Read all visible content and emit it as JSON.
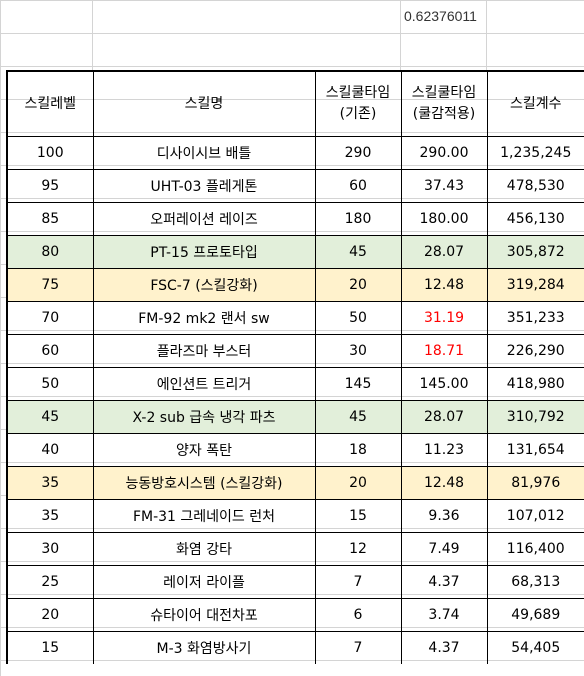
{
  "top_cell": {
    "value": "0.62376011"
  },
  "headers": {
    "level": "스킬레벨",
    "name": "스킬명",
    "cooldown_base_1": "스킬쿨타임",
    "cooldown_base_2": "(기존)",
    "cooldown_reduced_1": "스킬쿨타임",
    "cooldown_reduced_2": "(쿨감적용)",
    "coefficient": "스킬계수"
  },
  "rows": [
    {
      "level": "100",
      "name": "디사이시브  배틀",
      "base": "290",
      "reduced": "290.00",
      "coef": "1,235,245",
      "style": "",
      "bold": false,
      "red": false
    },
    {
      "level": "95",
      "name": "UHT-03 플레게톤",
      "base": "60",
      "reduced": "37.43",
      "coef": "478,530",
      "style": "",
      "bold": false,
      "red": false
    },
    {
      "level": "85",
      "name": "오퍼레이션 레이즈",
      "base": "180",
      "reduced": "180.00",
      "coef": "456,130",
      "style": "",
      "bold": false,
      "red": false
    },
    {
      "level": "80",
      "name": "PT-15 프로토타입",
      "base": "45",
      "reduced": "28.07",
      "coef": "305,872",
      "style": "green",
      "bold": false,
      "red": false
    },
    {
      "level": "75",
      "name": "FSC-7 (스킬강화)",
      "base": "20",
      "reduced": "12.48",
      "coef": "319,284",
      "style": "yellow",
      "bold": false,
      "red": false
    },
    {
      "level": "70",
      "name": "FM-92 mk2 랜서 sw",
      "base": "50",
      "reduced": "31.19",
      "coef": "351,233",
      "style": "",
      "bold": true,
      "red": true
    },
    {
      "level": "60",
      "name": "플라즈마 부스터",
      "base": "30",
      "reduced": "18.71",
      "coef": "226,290",
      "style": "",
      "bold": true,
      "red": true
    },
    {
      "level": "50",
      "name": "에인션트 트리거",
      "base": "145",
      "reduced": "145.00",
      "coef": "418,980",
      "style": "",
      "bold": false,
      "red": false
    },
    {
      "level": "45",
      "name": "X-2 sub 급속 냉각 파츠",
      "base": "45",
      "reduced": "28.07",
      "coef": "310,792",
      "style": "green",
      "bold": true,
      "red": false
    },
    {
      "level": "40",
      "name": "양자 폭탄",
      "base": "18",
      "reduced": "11.23",
      "coef": "131,654",
      "style": "",
      "bold": false,
      "red": false
    },
    {
      "level": "35",
      "name": "능동방호시스템 (스킬강화)",
      "base": "20",
      "reduced": "12.48",
      "coef": "81,976",
      "style": "yellow",
      "bold": true,
      "red": false
    },
    {
      "level": "35",
      "name": "FM-31 그레네이드 런처",
      "base": "15",
      "reduced": "9.36",
      "coef": "107,012",
      "style": "",
      "bold": false,
      "red": false
    },
    {
      "level": "30",
      "name": "화염 강타",
      "base": "12",
      "reduced": "7.49",
      "coef": "116,400",
      "style": "",
      "bold": false,
      "red": false
    },
    {
      "level": "25",
      "name": "레이저 라이플",
      "base": "7",
      "reduced": "4.37",
      "coef": "68,313",
      "style": "",
      "bold": false,
      "red": false
    },
    {
      "level": "20",
      "name": "슈타이어 대전차포",
      "base": "6",
      "reduced": "3.74",
      "coef": "49,689",
      "style": "",
      "bold": false,
      "red": false
    },
    {
      "level": "15",
      "name": "M-3 화염방사기",
      "base": "7",
      "reduced": "4.37",
      "coef": "54,405",
      "style": "",
      "bold": false,
      "red": false
    }
  ]
}
